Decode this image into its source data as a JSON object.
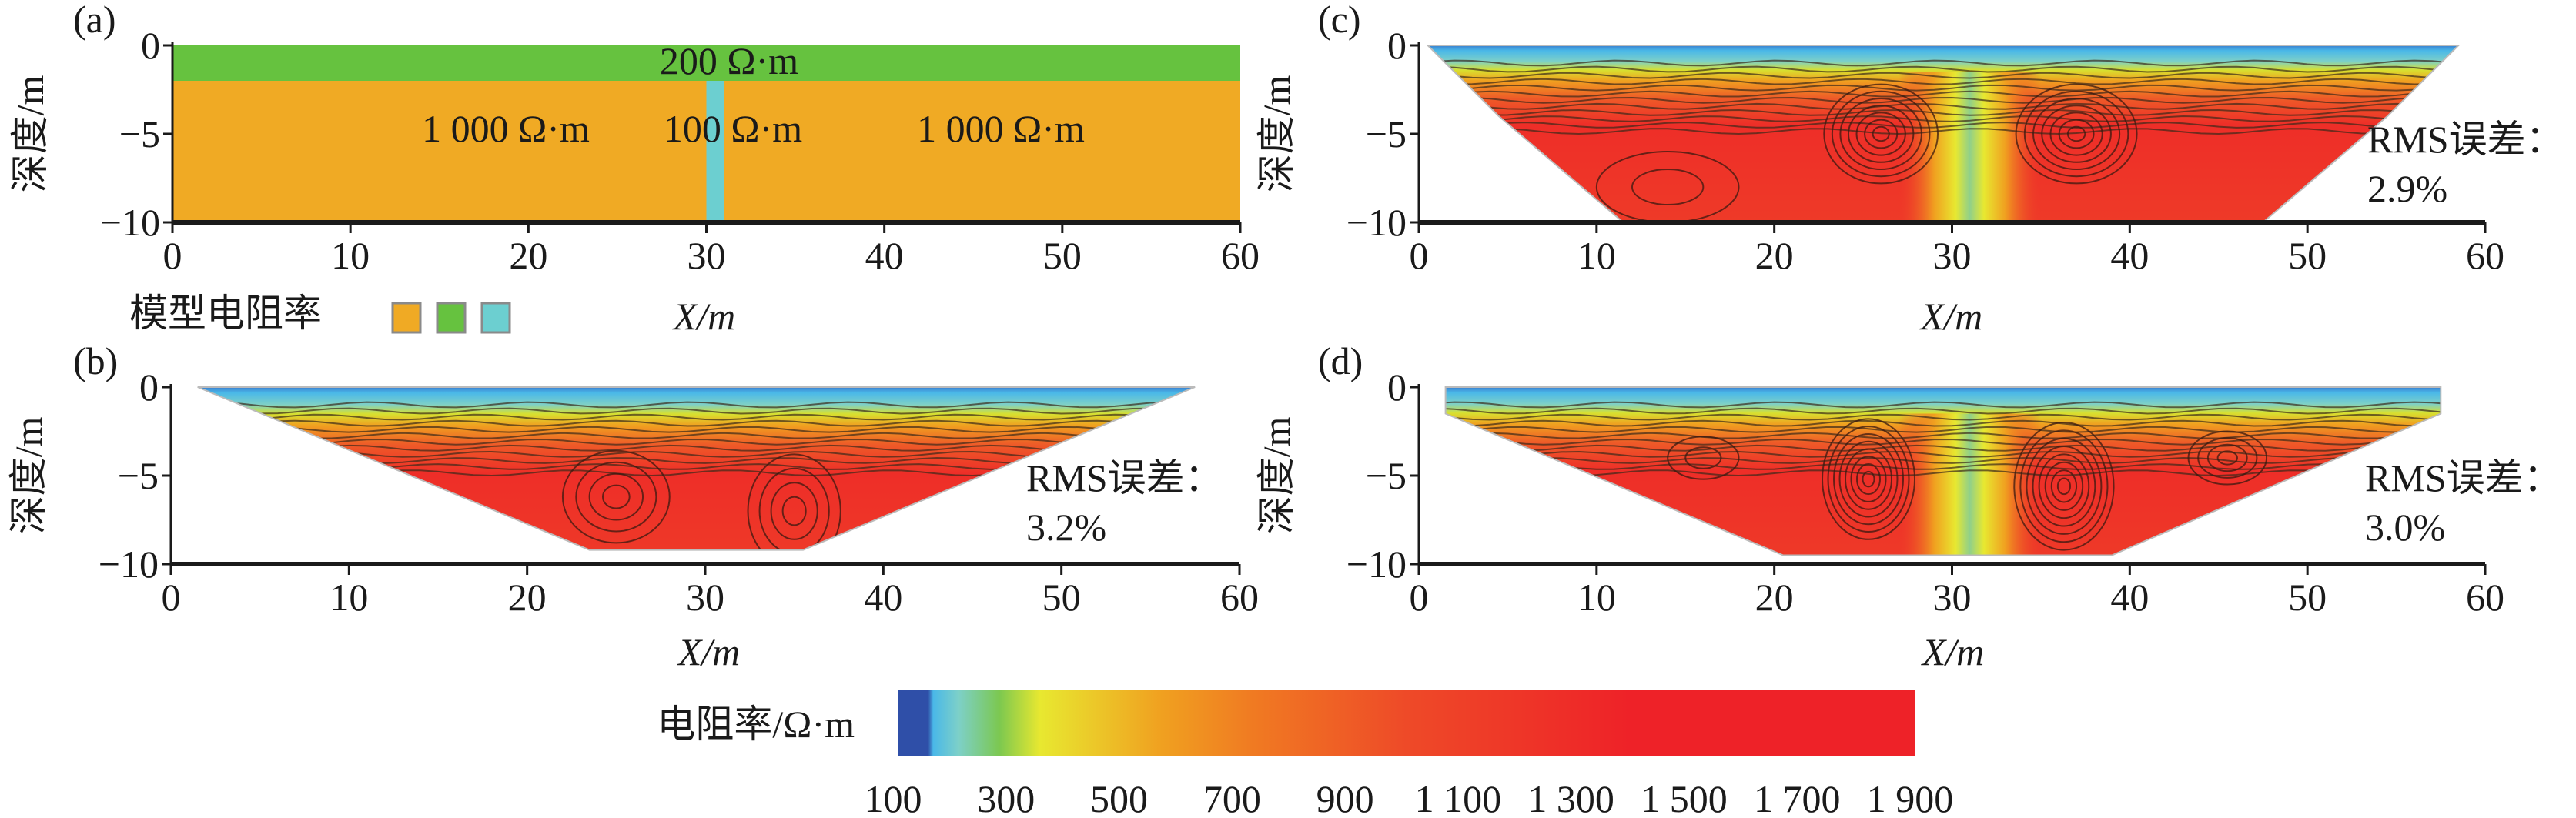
{
  "chart_data": [
    {
      "panel": "(a)",
      "type": "heatmap",
      "xlabel": "X/m",
      "ylabel": "深度/m",
      "xlim": [
        0,
        60
      ],
      "ylim": [
        -10,
        0
      ],
      "xticks": [
        "0",
        "10",
        "20",
        "30",
        "40",
        "50",
        "60"
      ],
      "yticks": [
        "0",
        "−5",
        "−10"
      ],
      "layers": [
        {
          "label": "200 Ω·m",
          "resistivity": 200,
          "x": [
            0,
            60
          ],
          "depth": [
            0,
            -2
          ],
          "color": "#66c23f"
        },
        {
          "label": "1 000 Ω·m",
          "resistivity": 1000,
          "x": [
            0,
            30
          ],
          "depth": [
            -2,
            -10
          ],
          "color": "#f0aa24"
        },
        {
          "label": "100 Ω·m",
          "resistivity": 100,
          "x": [
            30,
            31
          ],
          "depth": [
            -2,
            -10
          ],
          "color": "#6ccfd0"
        },
        {
          "label": "1 000 Ω·m",
          "resistivity": 1000,
          "x": [
            31,
            60
          ],
          "depth": [
            -2,
            -10
          ],
          "color": "#f0aa24"
        }
      ],
      "legend": {
        "label": "模型电阻率",
        "colors": [
          "#f0aa24",
          "#66c23f",
          "#6ccfd0"
        ]
      }
    },
    {
      "panel": "(b)",
      "type": "heatmap",
      "xlabel": "X/m",
      "ylabel": "深度/m",
      "xlim": [
        0,
        60
      ],
      "ylim": [
        -10,
        0
      ],
      "xticks": [
        "0",
        "10",
        "20",
        "30",
        "40",
        "50",
        "60"
      ],
      "yticks": [
        "0",
        "−5",
        "−10"
      ],
      "rms_label": "RMS误差：",
      "rms_value": "3.2%",
      "section": [
        [
          1.5,
          0
        ],
        [
          57.5,
          0
        ],
        [
          35.5,
          -9.2
        ],
        [
          23.5,
          -9.2
        ]
      ]
    },
    {
      "panel": "(c)",
      "type": "heatmap",
      "xlabel": "X/m",
      "ylabel": "深度/m",
      "xlim": [
        0,
        60
      ],
      "ylim": [
        -10,
        0
      ],
      "xticks": [
        "0",
        "10",
        "20",
        "30",
        "40",
        "50",
        "60"
      ],
      "yticks": [
        "0",
        "−5",
        "−10"
      ],
      "rms_label": "RMS误差：",
      "rms_value": "2.9%",
      "section": [
        [
          0.5,
          0
        ],
        [
          58.5,
          0
        ],
        [
          57.5,
          -1
        ],
        [
          54.5,
          -4
        ],
        [
          47.5,
          -10
        ],
        [
          11.5,
          -10
        ],
        [
          4.5,
          -4
        ],
        [
          1.5,
          -1
        ]
      ]
    },
    {
      "panel": "(d)",
      "type": "heatmap",
      "xlabel": "X/m",
      "ylabel": "深度/m",
      "xlim": [
        0,
        60
      ],
      "ylim": [
        -10,
        0
      ],
      "xticks": [
        "0",
        "10",
        "20",
        "30",
        "40",
        "50",
        "60"
      ],
      "yticks": [
        "0",
        "−5",
        "−10"
      ],
      "rms_label": "RMS误差：",
      "rms_value": "3.0%",
      "section": [
        [
          1.5,
          0
        ],
        [
          57.5,
          0
        ],
        [
          57.5,
          -1.5
        ],
        [
          39,
          -9.5
        ],
        [
          20.5,
          -9.5
        ],
        [
          1.5,
          -1.5
        ]
      ]
    }
  ],
  "colorbar": {
    "label": "电阻率/Ω·m",
    "ticks": [
      "100",
      "300",
      "500",
      "700",
      "900",
      "1 100",
      "1 300",
      "1 500",
      "1 700",
      "1 900"
    ],
    "range": [
      100,
      1900
    ],
    "colors": [
      "#2f4fa8",
      "#4ab8e8",
      "#7dd0c8",
      "#7cc850",
      "#e8e830",
      "#f0a020",
      "#f07a22",
      "#ee4a28",
      "#ee2228"
    ]
  }
}
